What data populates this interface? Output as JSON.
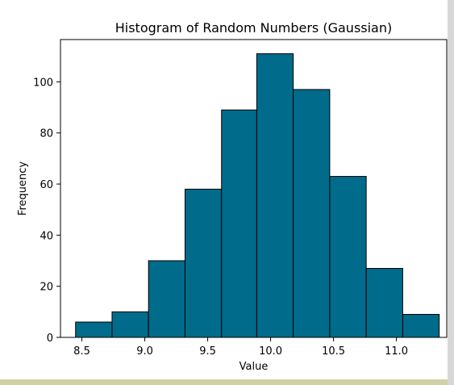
{
  "chart_data": {
    "type": "bar",
    "title": "Histogram of Random Numbers (Gaussian)",
    "xlabel": "Value",
    "ylabel": "Frequency",
    "bin_edges": [
      8.45,
      8.74,
      9.03,
      9.32,
      9.61,
      9.89,
      10.18,
      10.47,
      10.76,
      11.05,
      11.34
    ],
    "values": [
      6,
      10,
      30,
      58,
      89,
      111,
      97,
      63,
      27,
      9
    ],
    "xlim": [
      8.33,
      11.4
    ],
    "ylim": [
      0,
      116.55
    ],
    "xticks": [
      8.5,
      9.0,
      9.5,
      10.0,
      10.5,
      11.0
    ],
    "xtick_labels": [
      "8.5",
      "9.0",
      "9.5",
      "10.0",
      "10.5",
      "11.0"
    ],
    "yticks": [
      0,
      20,
      40,
      60,
      80,
      100
    ],
    "ytick_labels": [
      "0",
      "20",
      "40",
      "60",
      "80",
      "100"
    ],
    "bar_color": "#006b8a",
    "edge_color": "#000000",
    "grid": false,
    "legend": null
  }
}
